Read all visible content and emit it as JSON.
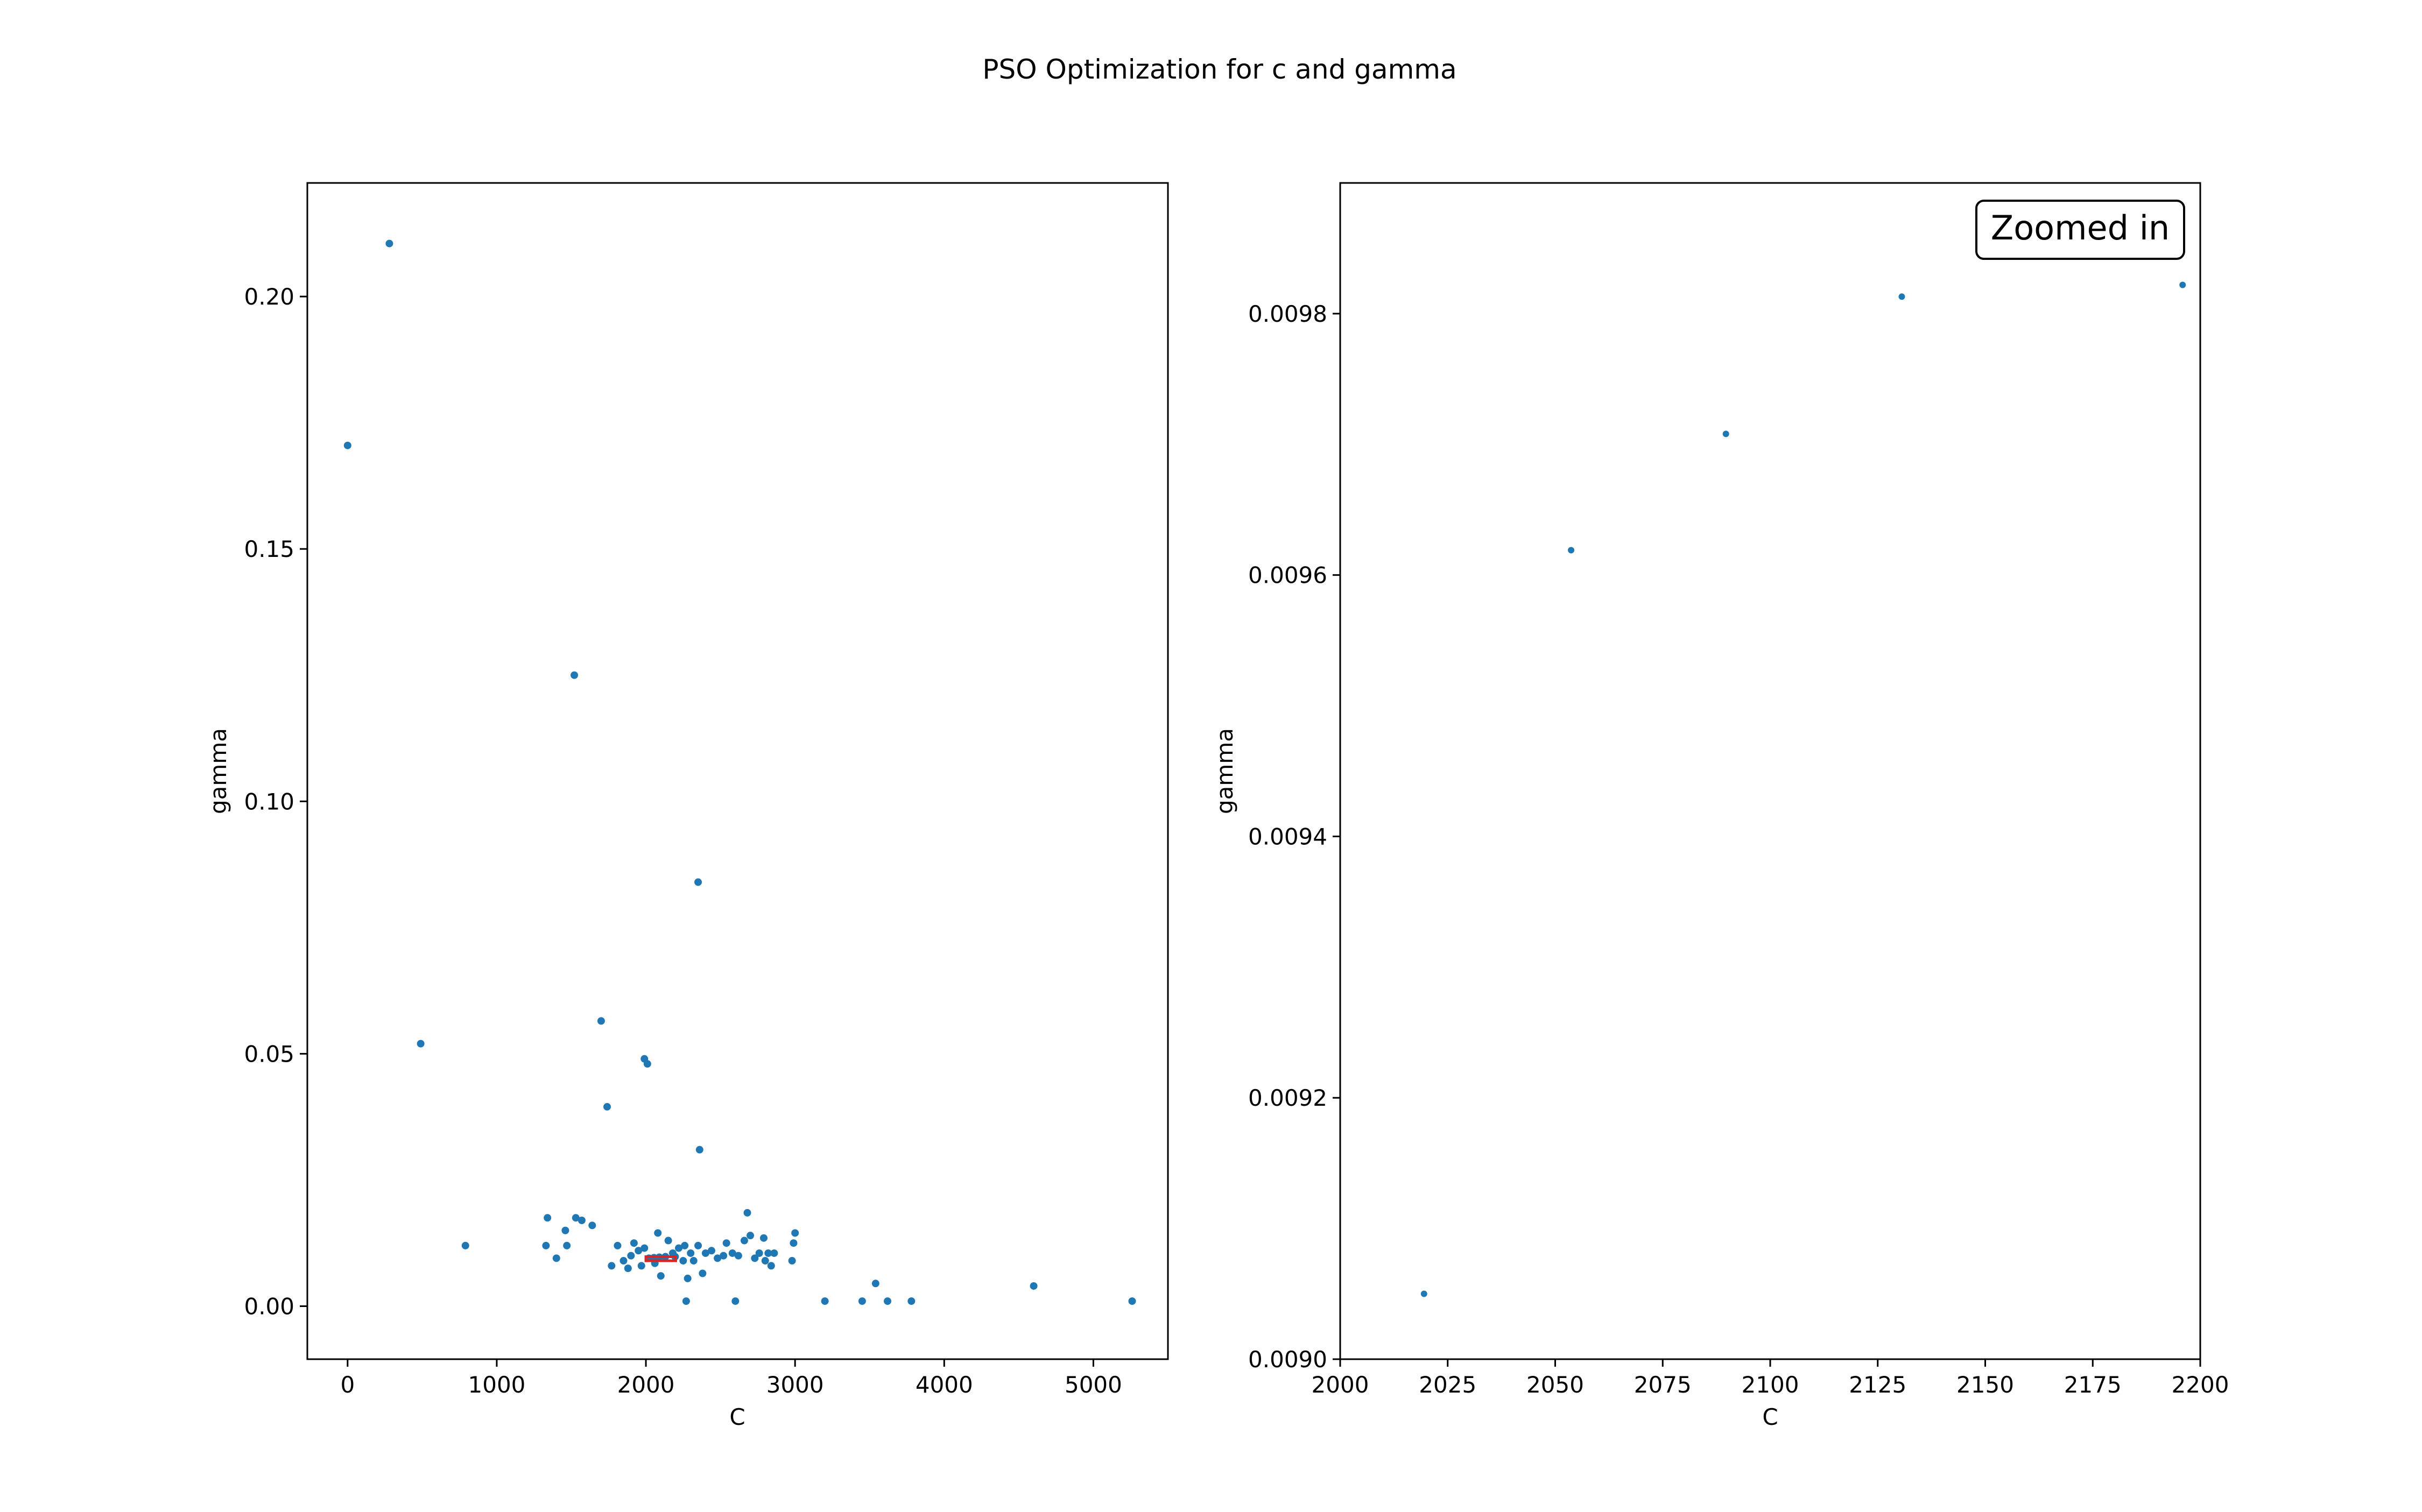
{
  "figure": {
    "title": "PSO Optimization for c and gamma"
  },
  "colors": {
    "points": "#1f77b4",
    "highlight": "#d62728"
  },
  "chart_data": [
    {
      "type": "scatter",
      "xlabel": "C",
      "ylabel": "gamma",
      "xlim": [
        -270,
        5500
      ],
      "ylim": [
        -0.0105,
        0.2225
      ],
      "xticks": [
        0,
        1000,
        2000,
        3000,
        4000,
        5000
      ],
      "xtick_labels": [
        "0",
        "1000",
        "2000",
        "3000",
        "4000",
        "5000"
      ],
      "yticks": [
        0.0,
        0.05,
        0.1,
        0.15,
        0.2
      ],
      "ytick_labels": [
        "0.00",
        "0.05",
        "0.10",
        "0.15",
        "0.20"
      ],
      "grid": false,
      "highlight_region": {
        "x": [
          2000,
          2200
        ],
        "y": [
          0.009,
          0.0098
        ]
      },
      "points": [
        {
          "x": 0,
          "y": 0.1705
        },
        {
          "x": 280,
          "y": 0.2105
        },
        {
          "x": 1520,
          "y": 0.125
        },
        {
          "x": 2350,
          "y": 0.084
        },
        {
          "x": 490,
          "y": 0.052
        },
        {
          "x": 1700,
          "y": 0.0565
        },
        {
          "x": 1990,
          "y": 0.049
        },
        {
          "x": 2010,
          "y": 0.048
        },
        {
          "x": 1740,
          "y": 0.0395
        },
        {
          "x": 2360,
          "y": 0.031
        },
        {
          "x": 790,
          "y": 0.012
        },
        {
          "x": 1330,
          "y": 0.012
        },
        {
          "x": 1340,
          "y": 0.0175
        },
        {
          "x": 1400,
          "y": 0.0095
        },
        {
          "x": 1460,
          "y": 0.015
        },
        {
          "x": 1470,
          "y": 0.012
        },
        {
          "x": 1530,
          "y": 0.0175
        },
        {
          "x": 1570,
          "y": 0.017
        },
        {
          "x": 1640,
          "y": 0.016
        },
        {
          "x": 1770,
          "y": 0.008
        },
        {
          "x": 1810,
          "y": 0.012
        },
        {
          "x": 1850,
          "y": 0.009
        },
        {
          "x": 1880,
          "y": 0.0075
        },
        {
          "x": 1900,
          "y": 0.01
        },
        {
          "x": 1920,
          "y": 0.0125
        },
        {
          "x": 1950,
          "y": 0.011
        },
        {
          "x": 1970,
          "y": 0.008
        },
        {
          "x": 1990,
          "y": 0.0115
        },
        {
          "x": 2020,
          "y": 0.0095
        },
        {
          "x": 2054,
          "y": 0.0096
        },
        {
          "x": 2060,
          "y": 0.0085
        },
        {
          "x": 2080,
          "y": 0.0145
        },
        {
          "x": 2090,
          "y": 0.0097
        },
        {
          "x": 2100,
          "y": 0.006
        },
        {
          "x": 2131,
          "y": 0.0098
        },
        {
          "x": 2150,
          "y": 0.013
        },
        {
          "x": 2180,
          "y": 0.0105
        },
        {
          "x": 2196,
          "y": 0.0098
        },
        {
          "x": 2220,
          "y": 0.0115
        },
        {
          "x": 2250,
          "y": 0.009
        },
        {
          "x": 2260,
          "y": 0.012
        },
        {
          "x": 2270,
          "y": 0.001
        },
        {
          "x": 2280,
          "y": 0.0055
        },
        {
          "x": 2300,
          "y": 0.0105
        },
        {
          "x": 2320,
          "y": 0.009
        },
        {
          "x": 2350,
          "y": 0.012
        },
        {
          "x": 2380,
          "y": 0.0065
        },
        {
          "x": 2400,
          "y": 0.0105
        },
        {
          "x": 2440,
          "y": 0.011
        },
        {
          "x": 2480,
          "y": 0.0095
        },
        {
          "x": 2520,
          "y": 0.01
        },
        {
          "x": 2540,
          "y": 0.0125
        },
        {
          "x": 2580,
          "y": 0.0105
        },
        {
          "x": 2600,
          "y": 0.001
        },
        {
          "x": 2620,
          "y": 0.01
        },
        {
          "x": 2660,
          "y": 0.013
        },
        {
          "x": 2680,
          "y": 0.0185
        },
        {
          "x": 2700,
          "y": 0.014
        },
        {
          "x": 2730,
          "y": 0.0095
        },
        {
          "x": 2760,
          "y": 0.0105
        },
        {
          "x": 2790,
          "y": 0.0135
        },
        {
          "x": 2800,
          "y": 0.009
        },
        {
          "x": 2820,
          "y": 0.0105
        },
        {
          "x": 2840,
          "y": 0.008
        },
        {
          "x": 2860,
          "y": 0.0105
        },
        {
          "x": 2980,
          "y": 0.009
        },
        {
          "x": 2990,
          "y": 0.0125
        },
        {
          "x": 3000,
          "y": 0.0145
        },
        {
          "x": 3200,
          "y": 0.001
        },
        {
          "x": 3450,
          "y": 0.001
        },
        {
          "x": 3540,
          "y": 0.0045
        },
        {
          "x": 3620,
          "y": 0.001
        },
        {
          "x": 3780,
          "y": 0.001
        },
        {
          "x": 4600,
          "y": 0.004
        },
        {
          "x": 5260,
          "y": 0.001
        }
      ]
    },
    {
      "type": "scatter",
      "xlabel": "C",
      "ylabel": "gamma",
      "xlim": [
        2000,
        2200
      ],
      "ylim": [
        0.009,
        0.0099
      ],
      "xticks": [
        2000,
        2025,
        2050,
        2075,
        2100,
        2125,
        2150,
        2175,
        2200
      ],
      "xtick_labels": [
        "2000",
        "2025",
        "2050",
        "2075",
        "2100",
        "2125",
        "2150",
        "2175",
        "2200"
      ],
      "yticks": [
        0.009,
        0.0092,
        0.0094,
        0.0096,
        0.0098
      ],
      "ytick_labels": [
        "0.0090",
        "0.0092",
        "0.0094",
        "0.0096",
        "0.0098"
      ],
      "grid": false,
      "annotation": "Zoomed in",
      "annotation_position": "top-right",
      "points": [
        {
          "x": 2019.5,
          "y": 0.00905
        },
        {
          "x": 2053.7,
          "y": 0.009619
        },
        {
          "x": 2089.7,
          "y": 0.009708
        },
        {
          "x": 2130.6,
          "y": 0.009813
        },
        {
          "x": 2195.9,
          "y": 0.009822
        }
      ]
    }
  ]
}
